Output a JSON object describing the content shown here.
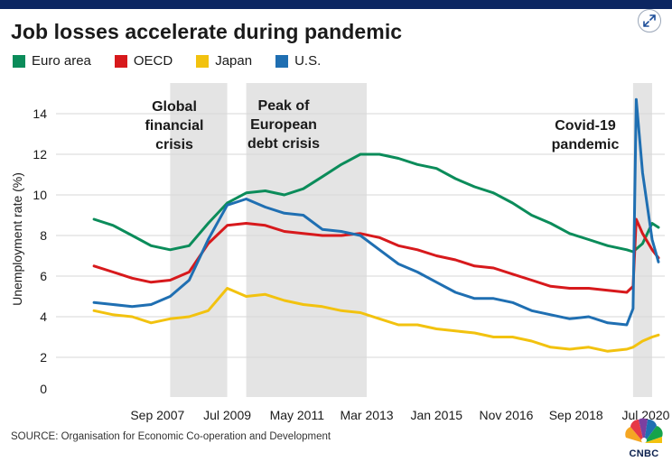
{
  "chart_data": {
    "type": "line",
    "title": "Job losses accelerate during pandemic",
    "ylabel": "Unemployment rate (%)",
    "xlabel": "",
    "ylim": [
      0,
      15
    ],
    "yticks": [
      2,
      4,
      6,
      8,
      10,
      12,
      14
    ],
    "xlim": [
      "2005-01",
      "2020-12"
    ],
    "xticks": [
      {
        "label": "Sep 2007",
        "date": "2007-09"
      },
      {
        "label": "Jul 2009",
        "date": "2009-07"
      },
      {
        "label": "May 2011",
        "date": "2011-05"
      },
      {
        "label": "Mar 2013",
        "date": "2013-03"
      },
      {
        "label": "Jan 2015",
        "date": "2015-01"
      },
      {
        "label": "Nov 2016",
        "date": "2016-11"
      },
      {
        "label": "Sep 2018",
        "date": "2018-09"
      },
      {
        "label": "Jul 2020",
        "date": "2020-07"
      }
    ],
    "grid": "horizontal",
    "legend_position": "top-left",
    "shaded_periods": [
      {
        "label": "Global financial crisis",
        "start": "2008-01",
        "end": "2009-07"
      },
      {
        "label": "Peak of European debt crisis",
        "start": "2010-01",
        "end": "2013-03"
      },
      {
        "label": "Covid-19 pandemic",
        "start": "2020-03",
        "end": "2020-09"
      }
    ],
    "series": [
      {
        "name": "Euro area",
        "color": "#0b8c5a",
        "points": [
          [
            "2006-01",
            8.8
          ],
          [
            "2006-07",
            8.5
          ],
          [
            "2007-01",
            8.0
          ],
          [
            "2007-07",
            7.5
          ],
          [
            "2008-01",
            7.3
          ],
          [
            "2008-07",
            7.5
          ],
          [
            "2009-01",
            8.6
          ],
          [
            "2009-07",
            9.6
          ],
          [
            "2010-01",
            10.1
          ],
          [
            "2010-07",
            10.2
          ],
          [
            "2011-01",
            10.0
          ],
          [
            "2011-07",
            10.3
          ],
          [
            "2012-01",
            10.9
          ],
          [
            "2012-07",
            11.5
          ],
          [
            "2013-01",
            12.0
          ],
          [
            "2013-07",
            12.0
          ],
          [
            "2014-01",
            11.8
          ],
          [
            "2014-07",
            11.5
          ],
          [
            "2015-01",
            11.3
          ],
          [
            "2015-07",
            10.8
          ],
          [
            "2016-01",
            10.4
          ],
          [
            "2016-07",
            10.1
          ],
          [
            "2017-01",
            9.6
          ],
          [
            "2017-07",
            9.0
          ],
          [
            "2018-01",
            8.6
          ],
          [
            "2018-07",
            8.1
          ],
          [
            "2019-01",
            7.8
          ],
          [
            "2019-07",
            7.5
          ],
          [
            "2020-01",
            7.3
          ],
          [
            "2020-03",
            7.2
          ],
          [
            "2020-06",
            7.6
          ],
          [
            "2020-09",
            8.6
          ],
          [
            "2020-11",
            8.4
          ]
        ]
      },
      {
        "name": "OECD",
        "color": "#d7191c",
        "points": [
          [
            "2006-01",
            6.5
          ],
          [
            "2006-07",
            6.2
          ],
          [
            "2007-01",
            5.9
          ],
          [
            "2007-07",
            5.7
          ],
          [
            "2008-01",
            5.8
          ],
          [
            "2008-07",
            6.2
          ],
          [
            "2009-01",
            7.6
          ],
          [
            "2009-07",
            8.5
          ],
          [
            "2010-01",
            8.6
          ],
          [
            "2010-07",
            8.5
          ],
          [
            "2011-01",
            8.2
          ],
          [
            "2011-07",
            8.1
          ],
          [
            "2012-01",
            8.0
          ],
          [
            "2012-07",
            8.0
          ],
          [
            "2013-01",
            8.1
          ],
          [
            "2013-07",
            7.9
          ],
          [
            "2014-01",
            7.5
          ],
          [
            "2014-07",
            7.3
          ],
          [
            "2015-01",
            7.0
          ],
          [
            "2015-07",
            6.8
          ],
          [
            "2016-01",
            6.5
          ],
          [
            "2016-07",
            6.4
          ],
          [
            "2017-01",
            6.1
          ],
          [
            "2017-07",
            5.8
          ],
          [
            "2018-01",
            5.5
          ],
          [
            "2018-07",
            5.4
          ],
          [
            "2019-01",
            5.4
          ],
          [
            "2019-07",
            5.3
          ],
          [
            "2020-01",
            5.2
          ],
          [
            "2020-03",
            5.5
          ],
          [
            "2020-04",
            8.8
          ],
          [
            "2020-06",
            8.1
          ],
          [
            "2020-09",
            7.3
          ],
          [
            "2020-11",
            6.9
          ]
        ]
      },
      {
        "name": "Japan",
        "color": "#f2c20f",
        "points": [
          [
            "2006-01",
            4.3
          ],
          [
            "2006-07",
            4.1
          ],
          [
            "2007-01",
            4.0
          ],
          [
            "2007-07",
            3.7
          ],
          [
            "2008-01",
            3.9
          ],
          [
            "2008-07",
            4.0
          ],
          [
            "2009-01",
            4.3
          ],
          [
            "2009-07",
            5.4
          ],
          [
            "2010-01",
            5.0
          ],
          [
            "2010-07",
            5.1
          ],
          [
            "2011-01",
            4.8
          ],
          [
            "2011-07",
            4.6
          ],
          [
            "2012-01",
            4.5
          ],
          [
            "2012-07",
            4.3
          ],
          [
            "2013-01",
            4.2
          ],
          [
            "2013-07",
            3.9
          ],
          [
            "2014-01",
            3.6
          ],
          [
            "2014-07",
            3.6
          ],
          [
            "2015-01",
            3.4
          ],
          [
            "2015-07",
            3.3
          ],
          [
            "2016-01",
            3.2
          ],
          [
            "2016-07",
            3.0
          ],
          [
            "2017-01",
            3.0
          ],
          [
            "2017-07",
            2.8
          ],
          [
            "2018-01",
            2.5
          ],
          [
            "2018-07",
            2.4
          ],
          [
            "2019-01",
            2.5
          ],
          [
            "2019-07",
            2.3
          ],
          [
            "2020-01",
            2.4
          ],
          [
            "2020-03",
            2.5
          ],
          [
            "2020-06",
            2.8
          ],
          [
            "2020-09",
            3.0
          ],
          [
            "2020-11",
            3.1
          ]
        ]
      },
      {
        "name": "U.S.",
        "color": "#1f6fb2",
        "points": [
          [
            "2006-01",
            4.7
          ],
          [
            "2006-07",
            4.6
          ],
          [
            "2007-01",
            4.5
          ],
          [
            "2007-07",
            4.6
          ],
          [
            "2008-01",
            5.0
          ],
          [
            "2008-07",
            5.8
          ],
          [
            "2009-01",
            7.8
          ],
          [
            "2009-07",
            9.5
          ],
          [
            "2010-01",
            9.8
          ],
          [
            "2010-07",
            9.4
          ],
          [
            "2011-01",
            9.1
          ],
          [
            "2011-07",
            9.0
          ],
          [
            "2012-01",
            8.3
          ],
          [
            "2012-07",
            8.2
          ],
          [
            "2013-01",
            8.0
          ],
          [
            "2013-07",
            7.3
          ],
          [
            "2014-01",
            6.6
          ],
          [
            "2014-07",
            6.2
          ],
          [
            "2015-01",
            5.7
          ],
          [
            "2015-07",
            5.2
          ],
          [
            "2016-01",
            4.9
          ],
          [
            "2016-07",
            4.9
          ],
          [
            "2017-01",
            4.7
          ],
          [
            "2017-07",
            4.3
          ],
          [
            "2018-01",
            4.1
          ],
          [
            "2018-07",
            3.9
          ],
          [
            "2019-01",
            4.0
          ],
          [
            "2019-07",
            3.7
          ],
          [
            "2020-01",
            3.6
          ],
          [
            "2020-03",
            4.4
          ],
          [
            "2020-04",
            14.7
          ],
          [
            "2020-06",
            11.1
          ],
          [
            "2020-09",
            7.8
          ],
          [
            "2020-11",
            6.7
          ]
        ]
      }
    ]
  },
  "source": "SOURCE: Organisation for Economic Co-operation and Development",
  "logo_text": "CNBC",
  "icons": {
    "expand": "expand-icon",
    "logo": "cnbc-peacock-logo"
  }
}
